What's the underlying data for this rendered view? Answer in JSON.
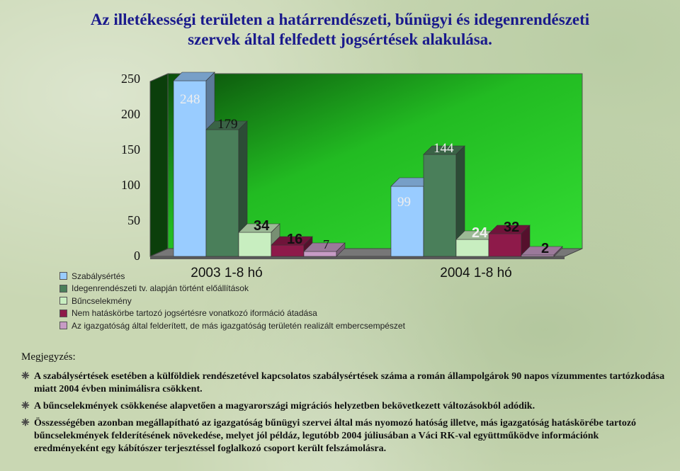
{
  "title_line1": "Az illetékességi területen a határrendészeti, bűnügyi és idegenrendészeti",
  "title_line2": "szervek által felfedett jogsértések alakulása.",
  "chart_data": {
    "type": "bar",
    "categories": [
      "2003 1-8 hó",
      "2004 1-8 hó"
    ],
    "series": [
      {
        "name": "Szabálysértés",
        "values": [
          248,
          99
        ],
        "color": "#99ccff"
      },
      {
        "name": "Idegenrendészeti tv. alapján történt előállítások",
        "values": [
          179,
          144
        ],
        "color": "#4a7f5a"
      },
      {
        "name": "Bűncselekmény",
        "values": [
          34,
          24
        ],
        "color": "#c8eec0"
      },
      {
        "name": "Nem hatáskörbe tartozó jogsértésre vonatkozó iformáció átadása",
        "values": [
          16,
          32
        ],
        "color": "#8e1a4a"
      },
      {
        "name": "Az igazgatóság által felderített, de más igazgatóság területén realizált embercsempészet",
        "values": [
          7,
          2
        ],
        "color": "#c79bc5"
      }
    ],
    "value_labels": [
      [
        "248",
        "179",
        "34",
        "16",
        "7"
      ],
      [
        "99",
        "144",
        "24",
        "32",
        "2"
      ]
    ],
    "y_ticks": [
      "0",
      "50",
      "100",
      "150",
      "200",
      "250"
    ],
    "ylim": [
      0,
      250
    ],
    "grid": false,
    "legend_position": "bottom-left",
    "plot_background": "#22bb22"
  },
  "notes": {
    "heading": "Megjegyzés:",
    "items": [
      "A szabálysértések esetében a külföldiek rendészetével kapcsolatos szabálysértések száma a román állampolgárok 90 napos vízummentes tartózkodása miatt 2004 évben minimálisra csökkent.",
      "A bűncselekmények csökkenése alapvetően a magyarországi migrációs helyzetben bekövetkezett változásokból adódik.",
      "Összességében azonban megállapítható az igazgatóság bűnügyi szervei által más nyomozó hatóság illetve, más igazgatóság hatáskörébe tartozó bűncselekmények felderítésének növekedése, melyet jól példáz,  legutóbb 2004 júliusában a Váci RK-val együttműködve információnk eredményeként egy kábítószer terjesztéssel foglalkozó csoport került felszámolásra."
    ]
  }
}
